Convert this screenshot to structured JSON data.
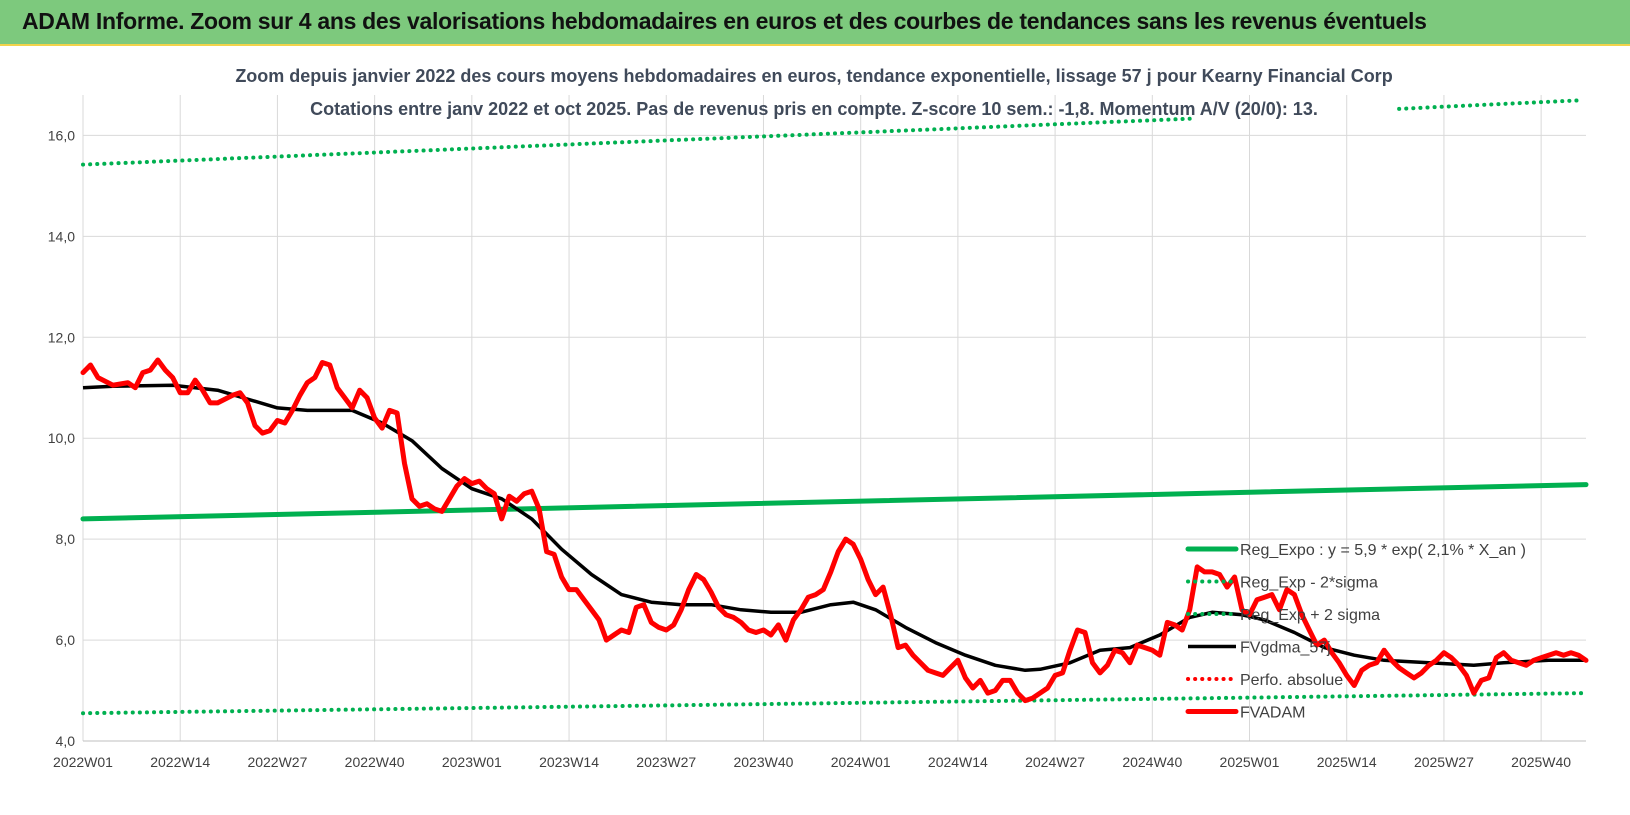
{
  "header": {
    "title": "ADAM Informe. Zoom sur 4 ans des valorisations hebdomadaires en euros et des courbes de tendances sans les revenus éventuels"
  },
  "chart_data": {
    "type": "line",
    "title": "Zoom depuis janvier 2022 des cours moyens hebdomadaires en euros, tendance exponentielle, lissage 57 j pour Kearny Financial Corp",
    "subtitle": "Cotations entre janv 2022 et oct 2025. Pas de revenus pris en compte. Z-score 10 sem.: -1,8. Momentum A/V (20/0): 13.",
    "xlabel": "",
    "ylabel": "",
    "ylim": [
      4.0,
      16.8
    ],
    "yticks": [
      4.0,
      6.0,
      8.0,
      10.0,
      12.0,
      14.0,
      16.0
    ],
    "ytick_labels": [
      "4,0",
      "6,0",
      "8,0",
      "10,0",
      "12,0",
      "14,0",
      "16,0"
    ],
    "x_tick_labels": [
      "2022W01",
      "2022W14",
      "2022W27",
      "2022W40",
      "2023W01",
      "2023W14",
      "2023W27",
      "2023W40",
      "2024W01",
      "2024W14",
      "2024W27",
      "2024W40",
      "2025W01",
      "2025W14",
      "2025W27",
      "2025W40"
    ],
    "x_tick_weeks": [
      0,
      13,
      26,
      39,
      52,
      65,
      78,
      91,
      104,
      117,
      130,
      143,
      156,
      169,
      182,
      195
    ],
    "n_weeks": 202,
    "grid": true,
    "legend_position": "right",
    "series": [
      {
        "name": "Reg_Expo : y = 5,9 * exp( 2,1% *  X_an )",
        "style": "solid-thick",
        "color": "#00b050",
        "points": [
          [
            0,
            8.4
          ],
          [
            201,
            9.08
          ]
        ]
      },
      {
        "name": "Reg_Exp - 2*sigma",
        "style": "dotted",
        "color": "#00b050",
        "points": [
          [
            0,
            4.55
          ],
          [
            201,
            4.95
          ]
        ]
      },
      {
        "name": "Reg_Exp + 2 sigma",
        "style": "dotted",
        "color": "#00b050",
        "points": [
          [
            0,
            15.42
          ],
          [
            148,
            16.33
          ],
          [
            201,
            16.7
          ]
        ],
        "gap_after_week": 148,
        "resume_week": 176
      },
      {
        "name": "FVgdma_57j",
        "style": "solid",
        "color": "#000000",
        "points": [
          [
            0,
            11.0
          ],
          [
            4,
            11.03
          ],
          [
            12,
            11.05
          ],
          [
            18,
            10.95
          ],
          [
            26,
            10.6
          ],
          [
            30,
            10.55
          ],
          [
            36,
            10.55
          ],
          [
            40,
            10.3
          ],
          [
            44,
            9.95
          ],
          [
            48,
            9.4
          ],
          [
            52,
            9.0
          ],
          [
            56,
            8.8
          ],
          [
            60,
            8.4
          ],
          [
            64,
            7.8
          ],
          [
            68,
            7.3
          ],
          [
            70,
            7.1
          ],
          [
            72,
            6.9
          ],
          [
            76,
            6.75
          ],
          [
            80,
            6.7
          ],
          [
            84,
            6.7
          ],
          [
            88,
            6.6
          ],
          [
            92,
            6.55
          ],
          [
            96,
            6.55
          ],
          [
            100,
            6.7
          ],
          [
            103,
            6.75
          ],
          [
            106,
            6.6
          ],
          [
            110,
            6.25
          ],
          [
            114,
            5.95
          ],
          [
            118,
            5.7
          ],
          [
            122,
            5.5
          ],
          [
            126,
            5.4
          ],
          [
            128,
            5.42
          ],
          [
            132,
            5.55
          ],
          [
            136,
            5.8
          ],
          [
            140,
            5.85
          ],
          [
            144,
            6.1
          ],
          [
            148,
            6.45
          ],
          [
            151,
            6.55
          ],
          [
            155,
            6.5
          ],
          [
            158,
            6.4
          ],
          [
            162,
            6.15
          ],
          [
            166,
            5.85
          ],
          [
            170,
            5.7
          ],
          [
            174,
            5.6
          ],
          [
            180,
            5.55
          ],
          [
            186,
            5.5
          ],
          [
            190,
            5.55
          ],
          [
            196,
            5.6
          ],
          [
            201,
            5.6
          ]
        ]
      },
      {
        "name": "Perfo. absolue",
        "style": "dotted",
        "color": "#ff0000",
        "points": []
      },
      {
        "name": "FVADAM",
        "style": "solid-thick",
        "color": "#ff0000",
        "points": [
          [
            0,
            11.3
          ],
          [
            1,
            11.45
          ],
          [
            2,
            11.2
          ],
          [
            4,
            11.05
          ],
          [
            6,
            11.1
          ],
          [
            7,
            11.0
          ],
          [
            8,
            11.3
          ],
          [
            9,
            11.35
          ],
          [
            10,
            11.55
          ],
          [
            11,
            11.35
          ],
          [
            12,
            11.2
          ],
          [
            13,
            10.9
          ],
          [
            14,
            10.9
          ],
          [
            15,
            11.15
          ],
          [
            16,
            10.95
          ],
          [
            17,
            10.7
          ],
          [
            18,
            10.7
          ],
          [
            20,
            10.85
          ],
          [
            21,
            10.9
          ],
          [
            22,
            10.7
          ],
          [
            23,
            10.25
          ],
          [
            24,
            10.1
          ],
          [
            25,
            10.15
          ],
          [
            26,
            10.35
          ],
          [
            27,
            10.3
          ],
          [
            28,
            10.55
          ],
          [
            29,
            10.85
          ],
          [
            30,
            11.1
          ],
          [
            31,
            11.2
          ],
          [
            32,
            11.5
          ],
          [
            33,
            11.45
          ],
          [
            34,
            11.0
          ],
          [
            35,
            10.8
          ],
          [
            36,
            10.6
          ],
          [
            37,
            10.95
          ],
          [
            38,
            10.8
          ],
          [
            39,
            10.4
          ],
          [
            40,
            10.2
          ],
          [
            41,
            10.55
          ],
          [
            42,
            10.5
          ],
          [
            43,
            9.5
          ],
          [
            44,
            8.8
          ],
          [
            45,
            8.65
          ],
          [
            46,
            8.7
          ],
          [
            47,
            8.6
          ],
          [
            48,
            8.55
          ],
          [
            49,
            8.8
          ],
          [
            50,
            9.05
          ],
          [
            51,
            9.2
          ],
          [
            52,
            9.1
          ],
          [
            53,
            9.15
          ],
          [
            54,
            9.0
          ],
          [
            55,
            8.9
          ],
          [
            56,
            8.4
          ],
          [
            57,
            8.85
          ],
          [
            58,
            8.75
          ],
          [
            59,
            8.9
          ],
          [
            60,
            8.95
          ],
          [
            61,
            8.6
          ],
          [
            62,
            7.75
          ],
          [
            63,
            7.7
          ],
          [
            64,
            7.25
          ],
          [
            65,
            7.0
          ],
          [
            66,
            7.0
          ],
          [
            67,
            6.8
          ],
          [
            68,
            6.6
          ],
          [
            69,
            6.4
          ],
          [
            70,
            6.0
          ],
          [
            71,
            6.1
          ],
          [
            72,
            6.2
          ],
          [
            73,
            6.15
          ],
          [
            74,
            6.65
          ],
          [
            75,
            6.7
          ],
          [
            76,
            6.35
          ],
          [
            77,
            6.25
          ],
          [
            78,
            6.2
          ],
          [
            79,
            6.3
          ],
          [
            80,
            6.6
          ],
          [
            81,
            7.0
          ],
          [
            82,
            7.3
          ],
          [
            83,
            7.2
          ],
          [
            84,
            6.95
          ],
          [
            85,
            6.65
          ],
          [
            86,
            6.5
          ],
          [
            87,
            6.45
          ],
          [
            88,
            6.35
          ],
          [
            89,
            6.2
          ],
          [
            90,
            6.15
          ],
          [
            91,
            6.2
          ],
          [
            92,
            6.1
          ],
          [
            93,
            6.3
          ],
          [
            94,
            6.0
          ],
          [
            95,
            6.4
          ],
          [
            96,
            6.6
          ],
          [
            97,
            6.85
          ],
          [
            98,
            6.9
          ],
          [
            99,
            7.0
          ],
          [
            100,
            7.35
          ],
          [
            101,
            7.75
          ],
          [
            102,
            8.0
          ],
          [
            103,
            7.9
          ],
          [
            104,
            7.6
          ],
          [
            105,
            7.2
          ],
          [
            106,
            6.9
          ],
          [
            107,
            7.05
          ],
          [
            108,
            6.5
          ],
          [
            109,
            5.85
          ],
          [
            110,
            5.9
          ],
          [
            111,
            5.7
          ],
          [
            112,
            5.55
          ],
          [
            113,
            5.4
          ],
          [
            114,
            5.35
          ],
          [
            115,
            5.3
          ],
          [
            116,
            5.45
          ],
          [
            117,
            5.6
          ],
          [
            118,
            5.25
          ],
          [
            119,
            5.05
          ],
          [
            120,
            5.2
          ],
          [
            121,
            4.95
          ],
          [
            122,
            5.0
          ],
          [
            123,
            5.2
          ],
          [
            124,
            5.2
          ],
          [
            125,
            4.95
          ],
          [
            126,
            4.8
          ],
          [
            127,
            4.85
          ],
          [
            128,
            4.95
          ],
          [
            129,
            5.05
          ],
          [
            130,
            5.3
          ],
          [
            131,
            5.35
          ],
          [
            132,
            5.8
          ],
          [
            133,
            6.2
          ],
          [
            134,
            6.15
          ],
          [
            135,
            5.55
          ],
          [
            136,
            5.35
          ],
          [
            137,
            5.5
          ],
          [
            138,
            5.8
          ],
          [
            139,
            5.75
          ],
          [
            140,
            5.55
          ],
          [
            141,
            5.9
          ],
          [
            142,
            5.85
          ],
          [
            143,
            5.8
          ],
          [
            144,
            5.7
          ],
          [
            145,
            6.35
          ],
          [
            146,
            6.3
          ],
          [
            147,
            6.2
          ],
          [
            148,
            6.6
          ],
          [
            149,
            7.45
          ],
          [
            150,
            7.35
          ],
          [
            151,
            7.35
          ],
          [
            152,
            7.3
          ],
          [
            153,
            7.05
          ],
          [
            154,
            7.25
          ],
          [
            155,
            6.6
          ],
          [
            156,
            6.5
          ],
          [
            157,
            6.8
          ],
          [
            158,
            6.85
          ],
          [
            159,
            6.9
          ],
          [
            160,
            6.6
          ],
          [
            161,
            7.0
          ],
          [
            162,
            6.9
          ],
          [
            163,
            6.5
          ],
          [
            164,
            6.2
          ],
          [
            165,
            5.9
          ],
          [
            166,
            6.0
          ],
          [
            167,
            5.75
          ],
          [
            168,
            5.55
          ],
          [
            169,
            5.3
          ],
          [
            170,
            5.1
          ],
          [
            171,
            5.4
          ],
          [
            172,
            5.5
          ],
          [
            173,
            5.55
          ],
          [
            174,
            5.8
          ],
          [
            175,
            5.6
          ],
          [
            176,
            5.45
          ],
          [
            177,
            5.35
          ],
          [
            178,
            5.25
          ],
          [
            179,
            5.35
          ],
          [
            180,
            5.5
          ],
          [
            181,
            5.6
          ],
          [
            182,
            5.75
          ],
          [
            183,
            5.65
          ],
          [
            184,
            5.5
          ],
          [
            185,
            5.3
          ],
          [
            186,
            4.95
          ],
          [
            187,
            5.2
          ],
          [
            188,
            5.25
          ],
          [
            189,
            5.65
          ],
          [
            190,
            5.75
          ],
          [
            191,
            5.6
          ],
          [
            192,
            5.55
          ],
          [
            193,
            5.5
          ],
          [
            194,
            5.6
          ],
          [
            195,
            5.65
          ],
          [
            196,
            5.7
          ],
          [
            197,
            5.75
          ],
          [
            198,
            5.7
          ],
          [
            199,
            5.75
          ],
          [
            200,
            5.7
          ],
          [
            201,
            5.6
          ]
        ]
      }
    ]
  }
}
